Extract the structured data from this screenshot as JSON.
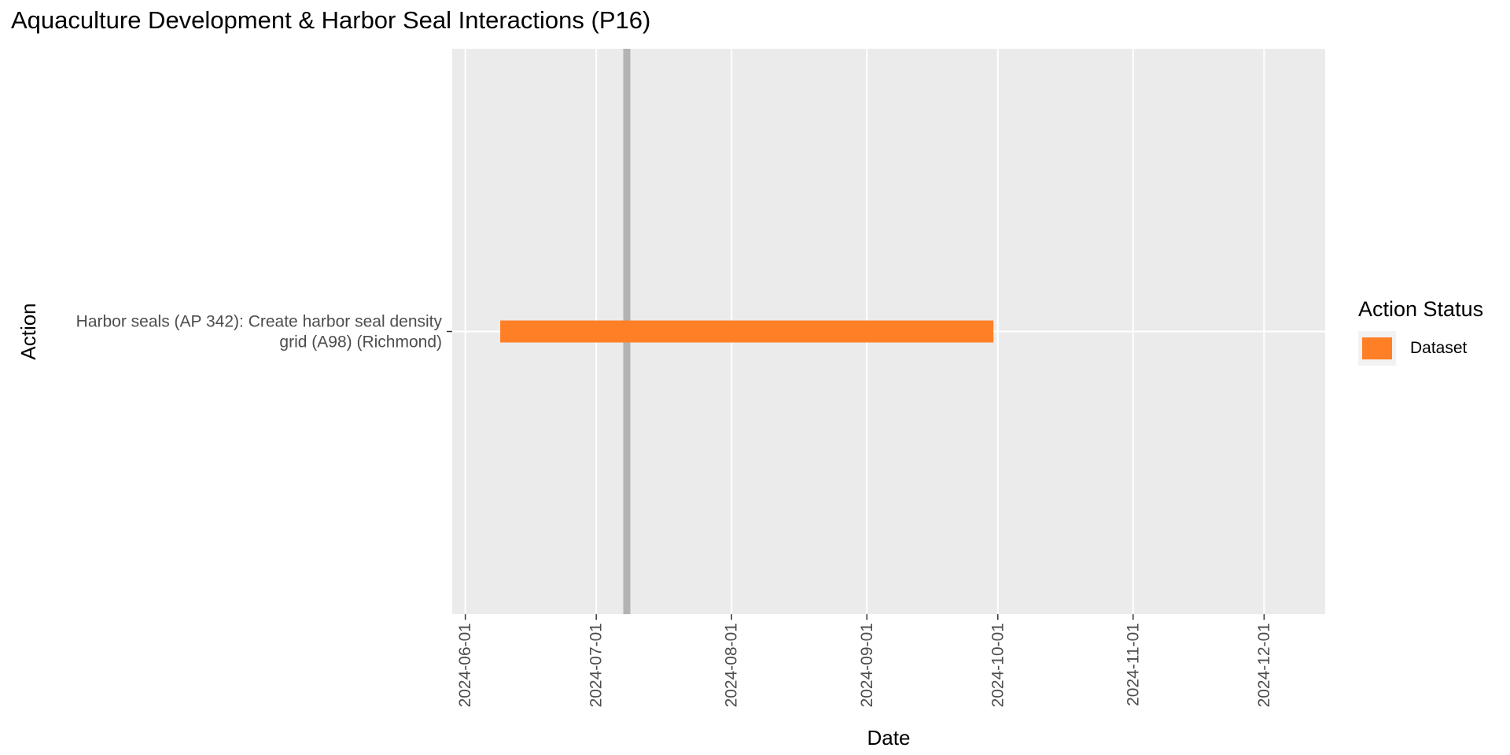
{
  "chart_data": {
    "type": "gantt",
    "title": "Aquaculture Development & Harbor Seal Interactions (P16)",
    "xlabel": "Date",
    "ylabel": "Action",
    "x_ticks": [
      "2024-06-01",
      "2024-07-01",
      "2024-08-01",
      "2024-09-01",
      "2024-10-01",
      "2024-11-01",
      "2024-12-01"
    ],
    "xlim": [
      "2024-05-29",
      "2024-12-15"
    ],
    "grid": true,
    "reference_line": {
      "date": "2024-07-08",
      "color": "#b3b3b3"
    },
    "bars": [
      {
        "action": "Harbor seals (AP 342): Create harbor seal density grid (A98) (Richmond)",
        "action_lines": [
          "Harbor seals (AP 342): Create harbor seal density",
          "grid (A98) (Richmond)"
        ],
        "start": "2024-06-09",
        "end": "2024-09-30",
        "status": "Dataset"
      }
    ],
    "legend": {
      "title": "Action Status",
      "position": "right",
      "items": [
        {
          "label": "Dataset",
          "color": "#ff7f27"
        }
      ]
    },
    "colors": {
      "panel": "#ebebeb",
      "grid": "#ffffff"
    }
  }
}
